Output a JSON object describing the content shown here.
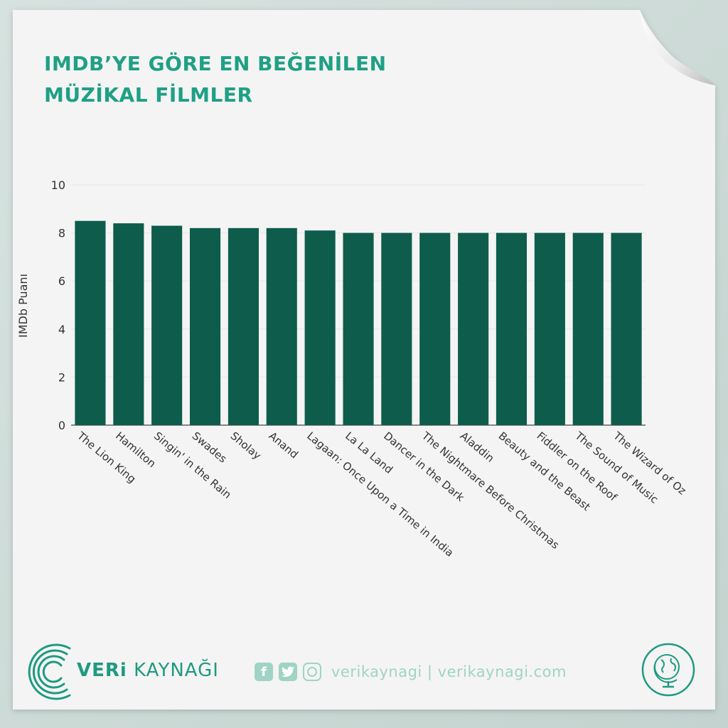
{
  "header": {
    "title_line1": "IMDB’YE GÖRE EN BEĞENİLEN",
    "title_line2": "MÜZİKAL FİLMLER"
  },
  "footer": {
    "brand_bold": "VERi",
    "brand_rest": " KAYNAĞI",
    "facebook_glyph": "f",
    "social_text": "verikaynagi | verikaynagi.com",
    "icons": [
      "facebook-icon",
      "twitter-icon",
      "instagram-icon",
      "globe-icon"
    ]
  },
  "colors": {
    "bar": "#0d5c4c",
    "title": "#1fa085",
    "accent_light": "#9fd4c5",
    "paper": "#f4f4f4"
  },
  "chart_data": {
    "type": "bar",
    "title": "",
    "xlabel": "",
    "ylabel": "IMDb Puanı",
    "ylim": [
      0,
      10
    ],
    "yticks": [
      0,
      2,
      4,
      6,
      8,
      10
    ],
    "grid": true,
    "categories": [
      "The Lion King",
      "Hamilton",
      "Singin' in the Rain",
      "Swades",
      "Sholay",
      "Anand",
      "Lagaan: Once Upon a Time in India",
      "La La Land",
      "Dancer in the Dark",
      "The Nightmare Before Christmas",
      "Aladdin",
      "Beauty and the Beast",
      "Fiddler on the Roof",
      "The Sound of Music",
      "The Wizard of Oz"
    ],
    "values": [
      8.5,
      8.4,
      8.3,
      8.2,
      8.2,
      8.2,
      8.1,
      8.0,
      8.0,
      8.0,
      8.0,
      8.0,
      8.0,
      8.0,
      8.0
    ]
  }
}
